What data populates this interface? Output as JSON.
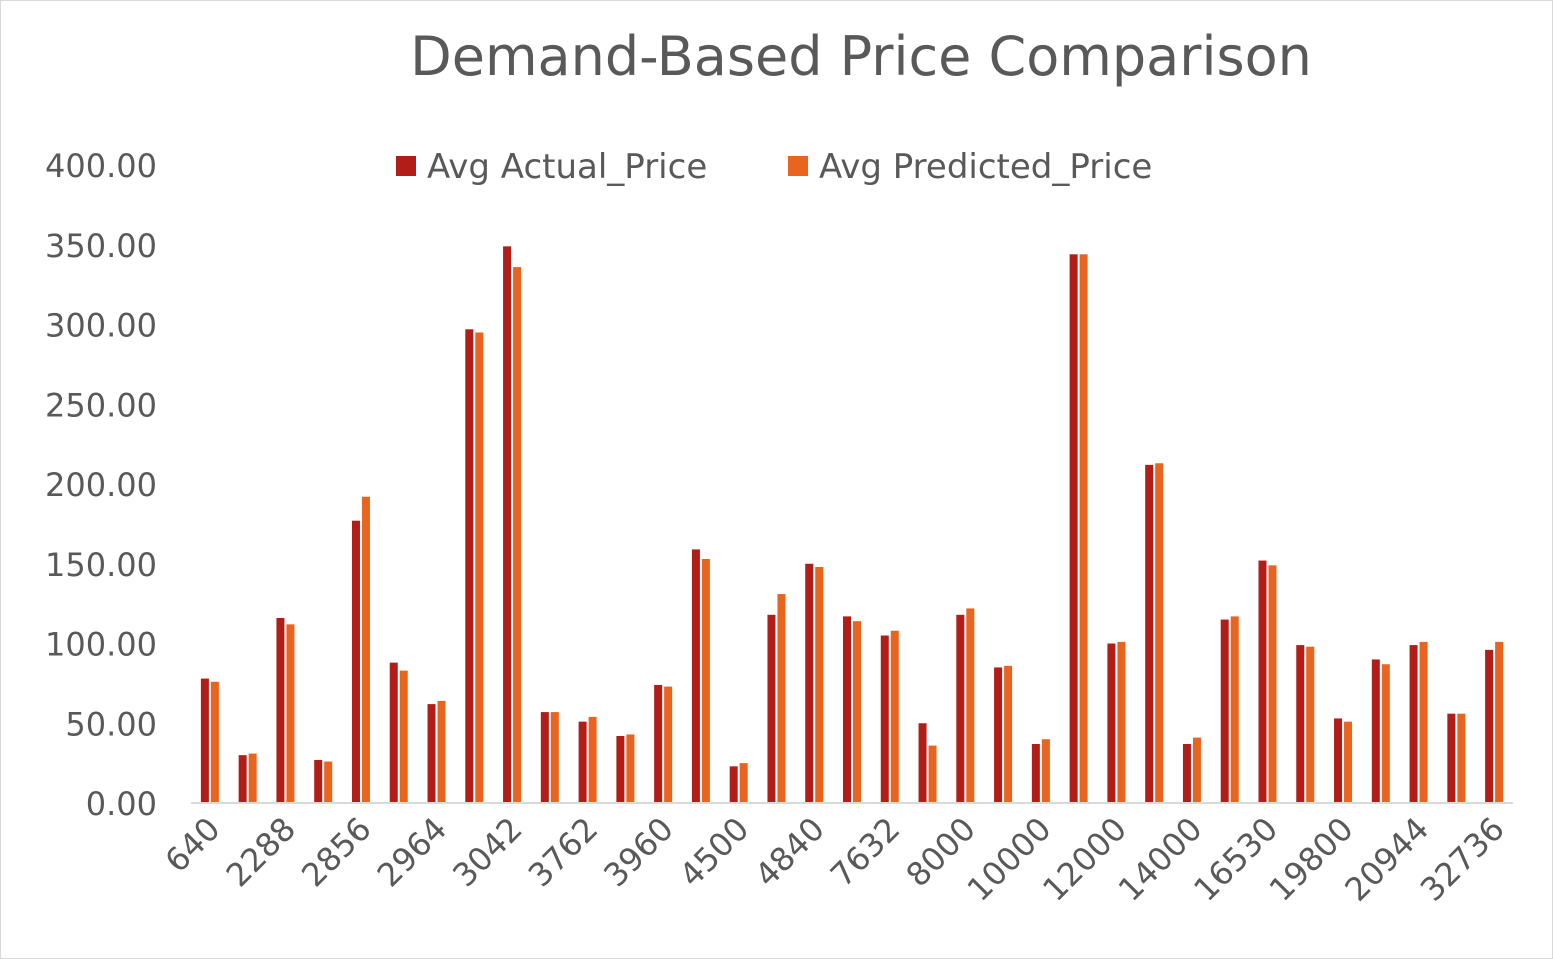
{
  "chart_data": {
    "type": "bar",
    "title": "Demand-Based Price Comparison",
    "xlabel": "",
    "ylabel": "",
    "ylim": [
      0,
      400
    ],
    "yticks": [
      "0.00",
      "50.00",
      "100.00",
      "150.00",
      "200.00",
      "250.00",
      "300.00",
      "350.00",
      "400.00"
    ],
    "grid": false,
    "legend_position": "top",
    "categories": [
      "640",
      "",
      "2288",
      "",
      "2856",
      "",
      "2964",
      "",
      "3042",
      "",
      "3762",
      "",
      "3960",
      "",
      "4500",
      "",
      "4840",
      "",
      "7632",
      "",
      "8000",
      "",
      "10000",
      "",
      "12000",
      "",
      "14000",
      "",
      "16530",
      "",
      "19800",
      "",
      "20944",
      "",
      "32736"
    ],
    "series": [
      {
        "name": "Avg Actual_Price",
        "color": "#b31d17",
        "values": [
          78,
          30,
          116,
          27,
          177,
          88,
          62,
          297,
          349,
          57,
          51,
          42,
          74,
          159,
          23,
          118,
          150,
          117,
          105,
          50,
          118,
          85,
          37,
          344,
          100,
          212,
          37,
          115,
          152,
          99,
          53,
          90,
          99,
          56,
          96
        ]
      },
      {
        "name": "Avg Predicted_Price",
        "color": "#e9651f",
        "values": [
          76,
          31,
          112,
          26,
          192,
          83,
          64,
          295,
          336,
          57,
          54,
          43,
          73,
          153,
          25,
          131,
          148,
          114,
          108,
          36,
          122,
          86,
          40,
          344,
          101,
          213,
          41,
          117,
          149,
          98,
          51,
          87,
          101,
          56,
          101
        ]
      }
    ]
  }
}
